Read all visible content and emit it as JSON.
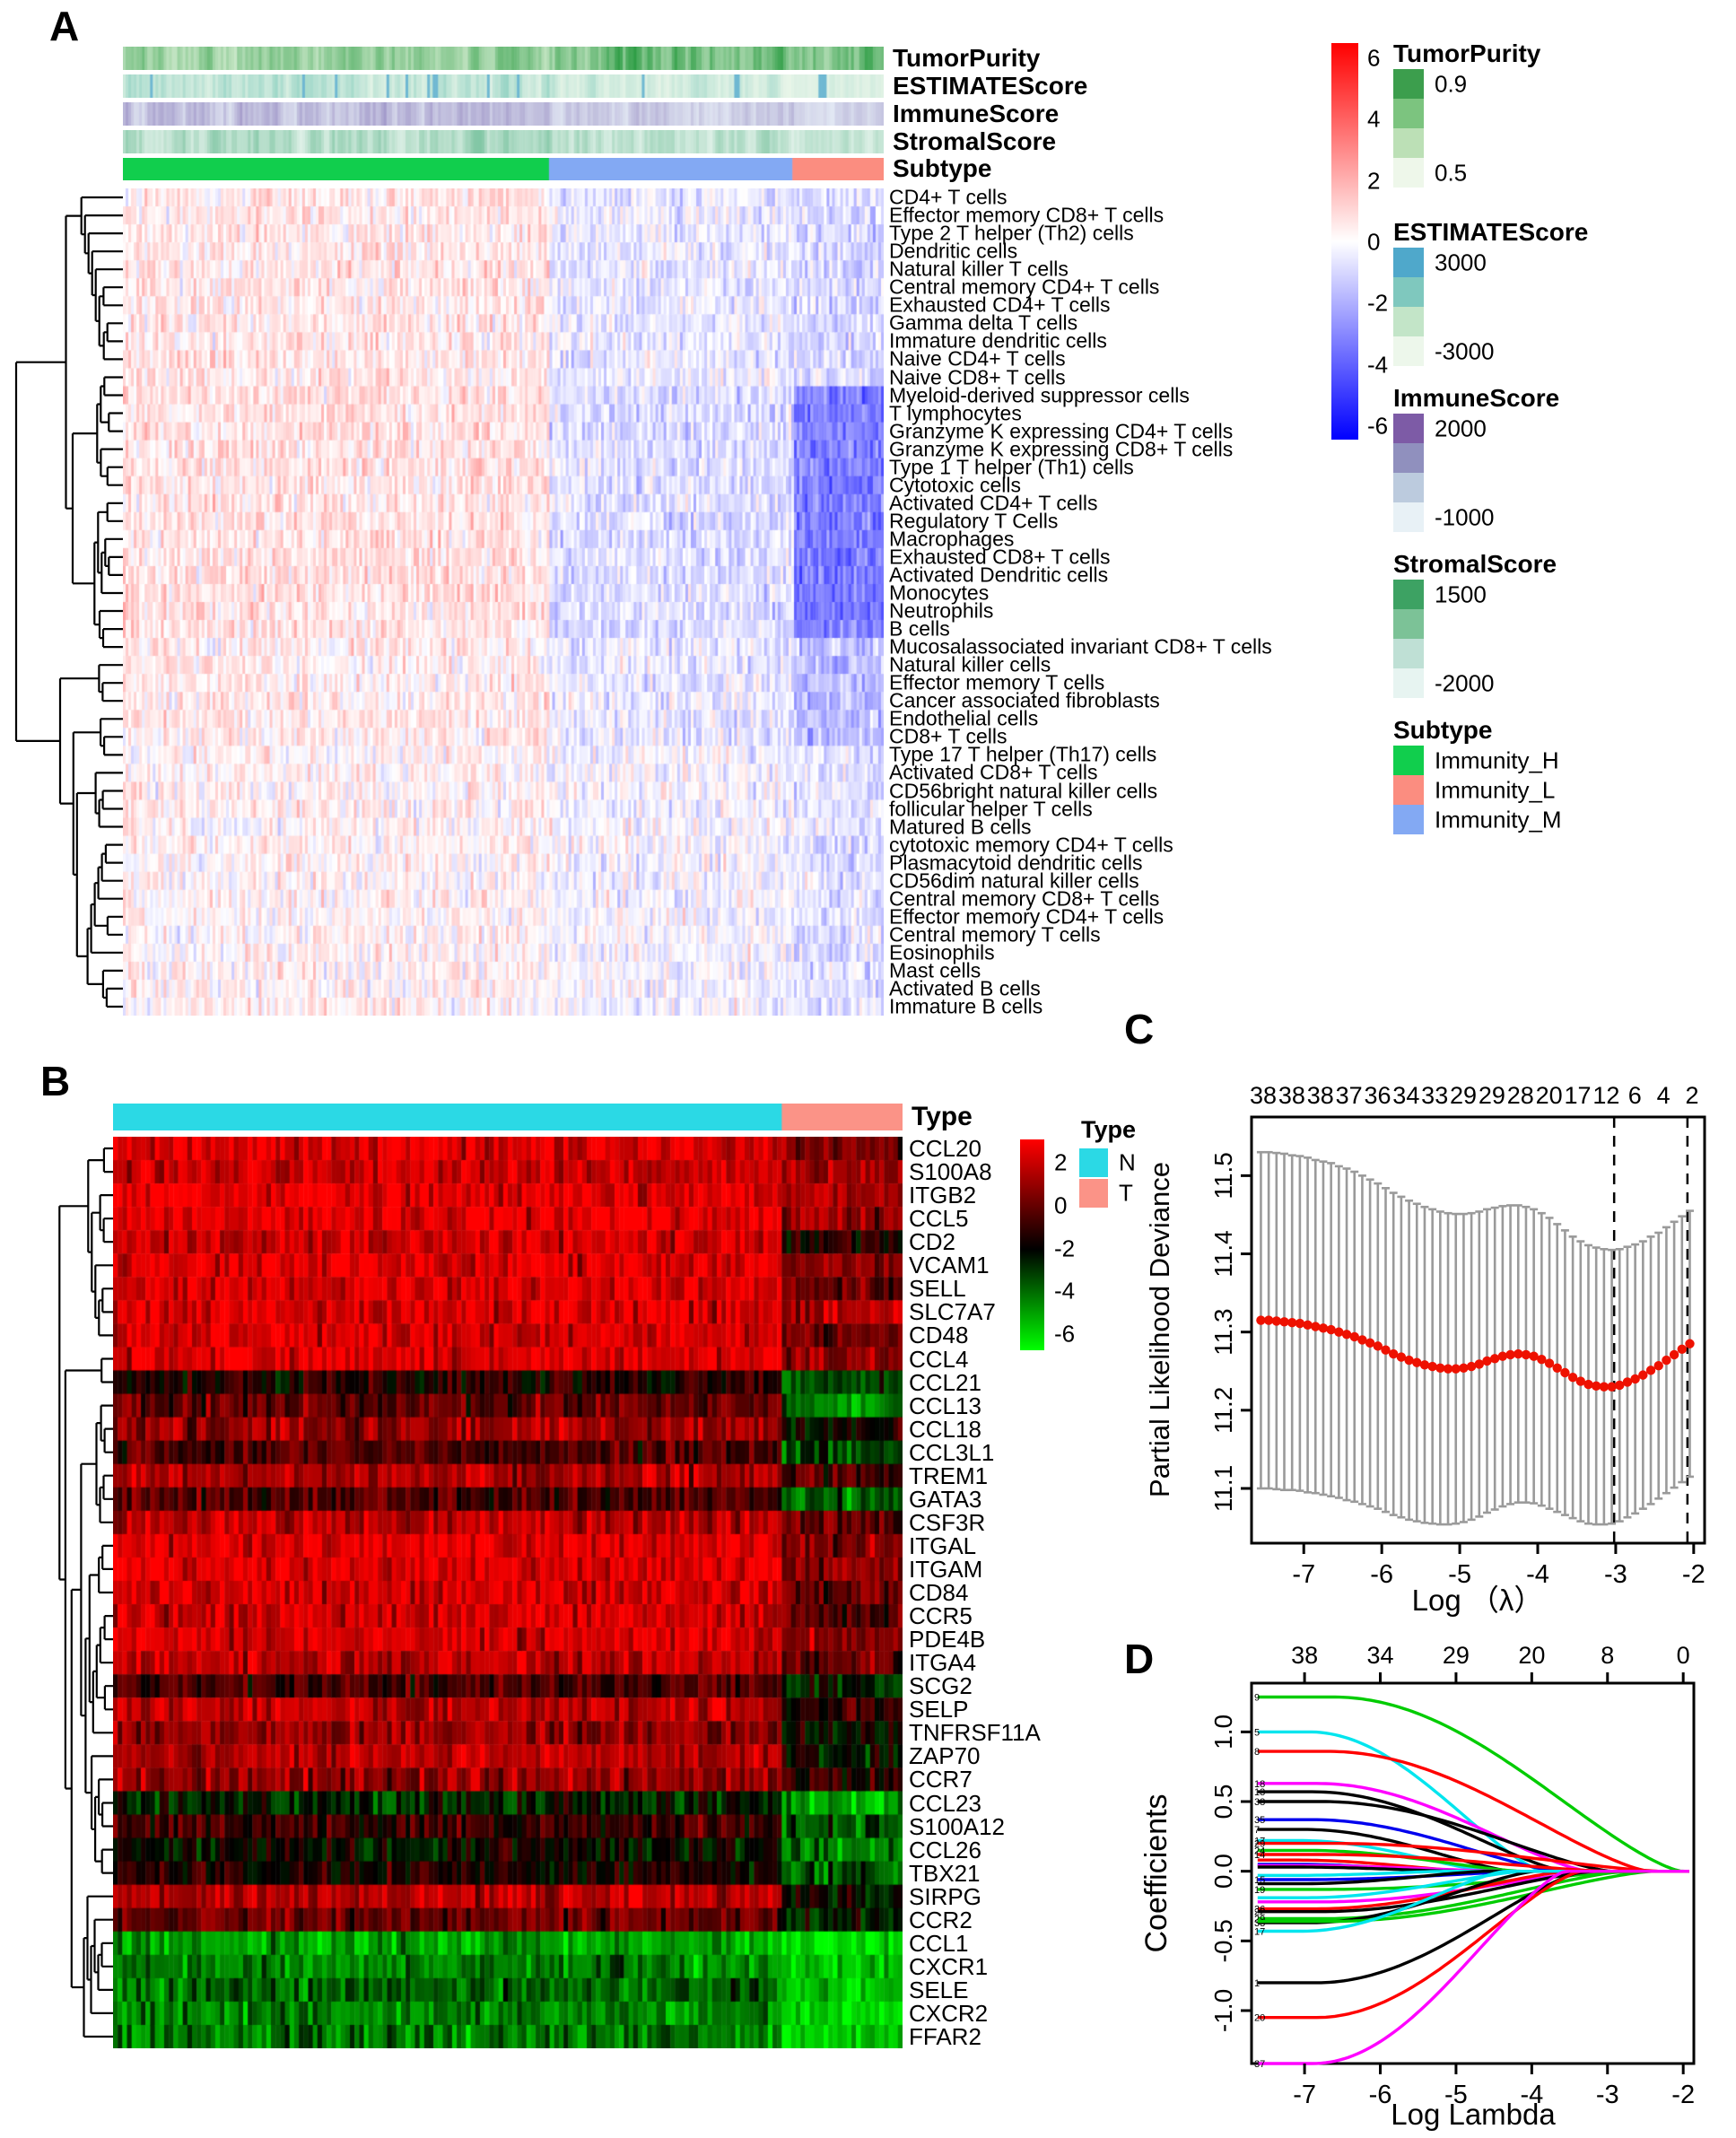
{
  "panels": {
    "a": "A",
    "b": "B",
    "c": "C",
    "d": "D"
  },
  "chart_data": [
    {
      "id": "A",
      "type": "heatmap",
      "annotation_rows": [
        "TumorPurity",
        "ESTIMATEScore",
        "ImmuneScore",
        "StromalScore",
        "Subtype"
      ],
      "annotation_strips": [
        {
          "name": "TumorPurity",
          "light": "#dcf0d8",
          "dark": "#2f9e46",
          "bias": [
            0.55,
            0.82,
            0.8
          ]
        },
        {
          "name": "ESTIMATEScore",
          "light": "#f0f8ec",
          "dark": "#62bfae",
          "accent": "#4fa8cb",
          "bias": [
            0.5,
            0.33,
            0.22
          ]
        },
        {
          "name": "ImmuneScore",
          "light": "#e9f1f8",
          "dark": "#8372b5",
          "bias": [
            0.55,
            0.4,
            0.28
          ]
        },
        {
          "name": "StromalScore",
          "light": "#edf7f2",
          "dark": "#4cae7e",
          "bias": [
            0.5,
            0.4,
            0.3
          ]
        }
      ],
      "subtype_segments": [
        {
          "name": "Immunity_H",
          "color": "#11ce4d",
          "frac": 0.56
        },
        {
          "name": "Immunity_M",
          "color": "#83a9f3",
          "frac": 0.32
        },
        {
          "name": "Immunity_L",
          "color": "#fb8d80",
          "frac": 0.12
        }
      ],
      "row_labels": [
        "CD4+ T cells",
        "Effector memory CD8+ T cells",
        "Type 2 T helper (Th2) cells",
        "Dendritic cells",
        "Natural killer T cells",
        "Central memory CD4+ T cells",
        "Exhausted CD4+ T cells",
        "Gamma delta T cells",
        "Immature dendritic cells",
        "Naive CD4+ T cells",
        "Naive CD8+ T cells",
        "Myeloid-derived suppressor cells",
        "T lymphocytes",
        "Granzyme K expressing CD4+ T cells",
        "Granzyme K expressing CD8+ T cells",
        "Type 1 T helper (Th1) cells",
        "Cytotoxic cells",
        "Activated CD4+ T cells",
        "Regulatory T Cells",
        "Macrophages",
        "Exhausted CD8+ T cells",
        "Activated Dendritic cells",
        "Monocytes",
        "Neutrophils",
        "B cells",
        "Mucosalassociated invariant CD8+ T cells",
        "Natural killer cells",
        "Effector memory T cells",
        "Cancer associated fibroblasts",
        "Endothelial cells",
        "CD8+ T cells",
        "Type 17 T helper (Th17) cells",
        "Activated CD8+ T cells",
        "CD56bright natural killer cells",
        "follicular helper T cells",
        "Matured B cells",
        "cytotoxic memory CD4+ T cells",
        "Plasmacytoid dendritic cells",
        "CD56dim natural killer cells",
        "Central memory CD8+ T cells",
        "Effector memory CD4+ T cells",
        "Central memory T cells",
        "Eosinophils",
        "Mast cells",
        "Activated B cells",
        "Immature B cells"
      ],
      "cols": 280,
      "value_range": [
        -6,
        6
      ],
      "heat_colors": {
        "high": "#ff0000",
        "mid": "#ffffff",
        "low": "#0000ff"
      },
      "row_profiles": [
        {
          "rows": [
            0,
            10
          ],
          "base": [
            0.55,
            -0.5,
            -0.9
          ]
        },
        {
          "rows": [
            11,
            24
          ],
          "base": [
            0.65,
            -0.75,
            -3.1
          ]
        },
        {
          "rows": [
            25,
            30
          ],
          "base": [
            0.45,
            -0.5,
            -1.5
          ]
        },
        {
          "rows": [
            31,
            45
          ],
          "base": [
            0.25,
            -0.2,
            -0.7
          ]
        }
      ],
      "noise": 1.05,
      "colorbar": {
        "ticks": [
          "6",
          "4",
          "2",
          "0",
          "-2",
          "-4",
          "-6"
        ]
      },
      "legends": [
        {
          "title": "TumorPurity",
          "swatches": [
            "#3c9e4d",
            "#7cc47f",
            "#bce0b6",
            "#eef7ea"
          ],
          "labels": [
            {
              "text": "0.9",
              "idx": 0
            },
            {
              "text": "0.5",
              "idx": 3
            }
          ]
        },
        {
          "title": "ESTIMATEScore",
          "swatches": [
            "#4fa8cb",
            "#7fc8be",
            "#c3e5c8",
            "#edf7eb"
          ],
          "labels": [
            {
              "text": "3000",
              "idx": 0
            },
            {
              "text": "-3000",
              "idx": 3
            }
          ]
        },
        {
          "title": "ImmuneScore",
          "swatches": [
            "#7d5ba6",
            "#9090be",
            "#bccbde",
            "#e8f1f6"
          ],
          "labels": [
            {
              "text": "2000",
              "idx": 0
            },
            {
              "text": "-1000",
              "idx": 3
            }
          ]
        },
        {
          "title": "StromalScore",
          "swatches": [
            "#3da263",
            "#7cc297",
            "#bfe0d5",
            "#e7f4f1"
          ],
          "labels": [
            {
              "text": "1500",
              "idx": 0
            },
            {
              "text": "-2000",
              "idx": 3
            }
          ]
        },
        {
          "title": "Subtype",
          "swatches": [
            "#11ce4d",
            "#fb8d80",
            "#83a9f3"
          ],
          "labels": [
            {
              "text": "Immunity_H",
              "idx": 0
            },
            {
              "text": "Immunity_L",
              "idx": 1
            },
            {
              "text": "Immunity_M",
              "idx": 2
            }
          ]
        }
      ]
    },
    {
      "id": "B",
      "type": "heatmap",
      "type_bar_label": "Type",
      "type_segments": [
        {
          "name": "N",
          "color": "#2bd9e5",
          "frac": 0.847
        },
        {
          "name": "T",
          "color": "#fb9387",
          "frac": 0.153
        }
      ],
      "gene_labels": [
        "CCL20",
        "S100A8",
        "ITGB2",
        "CCL5",
        "CD2",
        "VCAM1",
        "SELL",
        "SLC7A7",
        "CD48",
        "CCL4",
        "CCL21",
        "CCL13",
        "CCL18",
        "CCL3L1",
        "TREM1",
        "GATA3",
        "CSF3R",
        "ITGAL",
        "ITGAM",
        "CD84",
        "CCR5",
        "PDE4B",
        "ITGA4",
        "SCG2",
        "SELP",
        "TNFRSF11A",
        "ZAP70",
        "CCR7",
        "CCL23",
        "S100A12",
        "CCL26",
        "TBX21",
        "SIRPG",
        "CCR2",
        "CCL1",
        "CXCR1",
        "SELE",
        "CXCR2",
        "FFAR2"
      ],
      "cols": 170,
      "value_range": [
        -6,
        2
      ],
      "heat_colors": {
        "high": "#ff0000",
        "mid": "#000000",
        "low": "#00ff00"
      },
      "row_profiles_nt": [
        [
          1.4,
          0.0
        ],
        [
          1.2,
          0.3
        ],
        [
          1.6,
          0.6
        ],
        [
          1.6,
          0.3
        ],
        [
          1.3,
          -1.5
        ],
        [
          1.4,
          0.0
        ],
        [
          1.4,
          -0.3
        ],
        [
          1.4,
          0.5
        ],
        [
          1.4,
          -0.5
        ],
        [
          1.5,
          0.2
        ],
        [
          -1.5,
          -3.0
        ],
        [
          -0.5,
          -4.0
        ],
        [
          0.5,
          -2.0
        ],
        [
          -0.8,
          -3.0
        ],
        [
          0.8,
          -1.0
        ],
        [
          -0.8,
          -3.5
        ],
        [
          1.0,
          -0.5
        ],
        [
          1.5,
          0.0
        ],
        [
          1.5,
          0.3
        ],
        [
          1.3,
          -0.5
        ],
        [
          1.2,
          -0.8
        ],
        [
          1.3,
          0.0
        ],
        [
          0.9,
          -0.5
        ],
        [
          -1.0,
          -2.5
        ],
        [
          0.8,
          -1.5
        ],
        [
          0.2,
          -2.0
        ],
        [
          0.8,
          -2.0
        ],
        [
          0.3,
          -1.5
        ],
        [
          -2.5,
          -4.5
        ],
        [
          -1.2,
          -3.5
        ],
        [
          -2.0,
          -4.0
        ],
        [
          -1.5,
          -3.5
        ],
        [
          0.8,
          -2.0
        ],
        [
          -0.5,
          -2.5
        ],
        [
          -4.5,
          -5.5
        ],
        [
          -4.0,
          -5.0
        ],
        [
          -3.5,
          -5.0
        ],
        [
          -4.0,
          -5.5
        ],
        [
          -3.8,
          -5.0
        ]
      ],
      "noise": 1.15,
      "colorbar": {
        "ticks": [
          "2",
          "0",
          "-2",
          "-4",
          "-6"
        ]
      },
      "legend": {
        "title": "Type",
        "entries": [
          {
            "label": "N",
            "color": "#2bd9e5"
          },
          {
            "label": "T",
            "color": "#fb9387"
          }
        ]
      }
    },
    {
      "id": "C",
      "type": "scatter",
      "title": "",
      "xlabel": "Log （λ）",
      "ylabel": "Partial Likelihood Deviance",
      "xlim": [
        -7.67,
        -1.86
      ],
      "ylim": [
        11.03,
        11.575
      ],
      "xticks": [
        "-7",
        "-6",
        "-5",
        "-4",
        "-3",
        "-2"
      ],
      "xtick_vals": [
        -7,
        -6,
        -5,
        -4,
        -3,
        -2
      ],
      "yticks": [
        "11.1",
        "11.2",
        "11.3",
        "11.4",
        "11.5"
      ],
      "ytick_vals": [
        11.1,
        11.2,
        11.3,
        11.4,
        11.5
      ],
      "top_axis": [
        "38",
        "38",
        "38",
        "37",
        "36",
        "34",
        "33",
        "29",
        "29",
        "28",
        "20",
        "17",
        "12",
        "6",
        "4",
        "2"
      ],
      "dashed_x": [
        -3.02,
        -2.08
      ],
      "dot_color": "#ee1100",
      "bar_color": "#9a9a9a",
      "x": [
        -7.55,
        -7.45,
        -7.35,
        -7.25,
        -7.15,
        -7.05,
        -6.95,
        -6.85,
        -6.75,
        -6.65,
        -6.55,
        -6.45,
        -6.35,
        -6.25,
        -6.15,
        -6.05,
        -5.95,
        -5.85,
        -5.75,
        -5.65,
        -5.55,
        -5.45,
        -5.35,
        -5.25,
        -5.15,
        -5.05,
        -4.95,
        -4.85,
        -4.75,
        -4.65,
        -4.55,
        -4.45,
        -4.35,
        -4.25,
        -4.15,
        -4.05,
        -3.95,
        -3.85,
        -3.75,
        -3.65,
        -3.55,
        -3.45,
        -3.35,
        -3.25,
        -3.15,
        -3.05,
        -2.95,
        -2.85,
        -2.75,
        -2.65,
        -2.55,
        -2.45,
        -2.35,
        -2.25,
        -2.15,
        -2.05
      ],
      "y": [
        11.315,
        11.315,
        11.314,
        11.313,
        11.312,
        11.311,
        11.309,
        11.307,
        11.305,
        11.303,
        11.3,
        11.297,
        11.294,
        11.29,
        11.286,
        11.282,
        11.277,
        11.272,
        11.268,
        11.264,
        11.261,
        11.258,
        11.256,
        11.254,
        11.253,
        11.253,
        11.254,
        11.256,
        11.259,
        11.263,
        11.266,
        11.269,
        11.271,
        11.272,
        11.271,
        11.269,
        11.265,
        11.26,
        11.254,
        11.248,
        11.242,
        11.237,
        11.233,
        11.231,
        11.23,
        11.23,
        11.232,
        11.236,
        11.24,
        11.245,
        11.251,
        11.257,
        11.264,
        11.271,
        11.278,
        11.285
      ],
      "err": [
        0.215,
        0.215,
        0.215,
        0.215,
        0.214,
        0.214,
        0.214,
        0.213,
        0.213,
        0.213,
        0.212,
        0.212,
        0.211,
        0.21,
        0.209,
        0.208,
        0.207,
        0.206,
        0.205,
        0.204,
        0.203,
        0.202,
        0.201,
        0.2,
        0.199,
        0.198,
        0.197,
        0.196,
        0.195,
        0.194,
        0.193,
        0.192,
        0.191,
        0.19,
        0.189,
        0.188,
        0.187,
        0.186,
        0.184,
        0.182,
        0.18,
        0.179,
        0.178,
        0.177,
        0.176,
        0.175,
        0.174,
        0.173,
        0.172,
        0.171,
        0.171,
        0.17,
        0.17,
        0.17,
        0.17,
        0.17
      ]
    },
    {
      "id": "D",
      "type": "line",
      "xlabel": "Log Lambda",
      "ylabel": "Coefficients",
      "xlim": [
        -7.7,
        -1.86
      ],
      "ylim": [
        -1.38,
        1.35
      ],
      "xticks": [
        "-7",
        "-6",
        "-5",
        "-4",
        "-3",
        "-2"
      ],
      "xtick_vals": [
        -7,
        -6,
        -5,
        -4,
        -3,
        -2
      ],
      "yticks": [
        "1.0",
        "0.5",
        "0.0",
        "-0.5",
        "-1.0"
      ],
      "ytick_vals": [
        1.0,
        0.5,
        0.0,
        -0.5,
        -1.0
      ],
      "top_axis": [
        "38",
        "34",
        "29",
        "20",
        "8",
        "0"
      ],
      "curves": [
        {
          "color": "#00cc00",
          "y0": 1.25,
          "xzero": -2.02,
          "label": "9"
        },
        {
          "color": "#00e5ee",
          "y0": 1.0,
          "xzero": -3.85,
          "label": "5"
        },
        {
          "color": "#ff0000",
          "y0": 0.86,
          "xzero": -2.45,
          "label": "8"
        },
        {
          "color": "#ff00ff",
          "y0": 0.63,
          "xzero": -3.25,
          "label": "18"
        },
        {
          "color": "#000000",
          "y0": 0.57,
          "xzero": -3.55,
          "label": "13"
        },
        {
          "color": "#000000",
          "y0": 0.5,
          "xzero": -2.95,
          "label": "38"
        },
        {
          "color": "#0000ee",
          "y0": 0.37,
          "xzero": -3.65,
          "label": "35"
        },
        {
          "color": "#000000",
          "y0": 0.3,
          "xzero": -4.25,
          "label": "7"
        },
        {
          "color": "#00e5ee",
          "y0": 0.22,
          "xzero": -4.55,
          "label": "17"
        },
        {
          "color": "#ff0000",
          "y0": 0.2,
          "xzero": -2.3,
          "label": "29"
        },
        {
          "color": "#00cc00",
          "y0": 0.15,
          "xzero": -4.15,
          "label": "24"
        },
        {
          "color": "#ff0000",
          "y0": 0.12,
          "xzero": -3.0,
          "label": "14"
        },
        {
          "color": "#ff0000",
          "y0": 0.08,
          "xzero": -4.8,
          "label": ""
        },
        {
          "color": "#0000ee",
          "y0": 0.05,
          "xzero": -5.1,
          "label": ""
        },
        {
          "color": "#ff00ff",
          "y0": 0.04,
          "xzero": -4.4,
          "label": ""
        },
        {
          "color": "#000000",
          "y0": 0.03,
          "xzero": -5.0,
          "label": ""
        },
        {
          "color": "#00e5ee",
          "y0": -0.03,
          "xzero": -5.1,
          "label": ""
        },
        {
          "color": "#0000ee",
          "y0": -0.06,
          "xzero": -4.0,
          "label": "15"
        },
        {
          "color": "#000000",
          "y0": -0.09,
          "xzero": -4.6,
          "label": ""
        },
        {
          "color": "#00cc00",
          "y0": -0.13,
          "xzero": -2.55,
          "label": "19"
        },
        {
          "color": "#00e5ee",
          "y0": -0.19,
          "xzero": -4.1,
          "label": ""
        },
        {
          "color": "#ff00ff",
          "y0": -0.22,
          "xzero": -3.1,
          "label": ""
        },
        {
          "color": "#ff0000",
          "y0": -0.27,
          "xzero": -3.5,
          "label": "36"
        },
        {
          "color": "#000000",
          "y0": -0.29,
          "xzero": -3.15,
          "label": "22"
        },
        {
          "color": "#00cc00",
          "y0": -0.34,
          "xzero": -2.75,
          "label": "29"
        },
        {
          "color": "#000000",
          "y0": -0.37,
          "xzero": -3.95,
          "label": "33"
        },
        {
          "color": "#00cc00",
          "y0": -0.36,
          "xzero": -2.4,
          "label": ""
        },
        {
          "color": "#00e5ee",
          "y0": -0.43,
          "xzero": -4.35,
          "label": "17"
        },
        {
          "color": "#000000",
          "y0": -0.8,
          "xzero": -3.3,
          "label": "1"
        },
        {
          "color": "#ff0000",
          "y0": -1.05,
          "xzero": -3.35,
          "label": "20"
        },
        {
          "color": "#ff00ff",
          "y0": -1.38,
          "xzero": -3.55,
          "label": "37"
        }
      ]
    }
  ]
}
